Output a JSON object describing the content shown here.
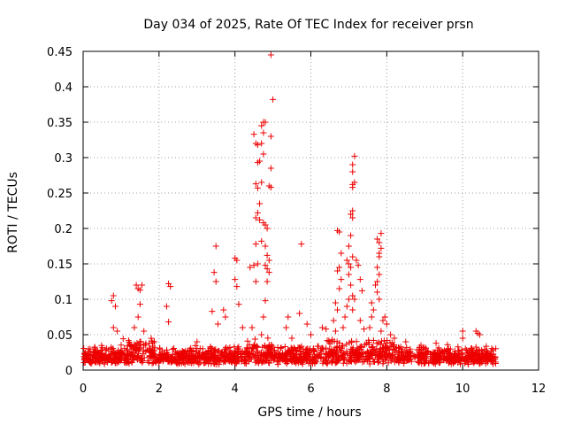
{
  "chart_data": {
    "type": "scatter",
    "title": "Day 034 of 2025, Rate Of TEC Index for receiver prsn",
    "xlabel": "GPS time / hours",
    "ylabel": "ROTI / TECUs",
    "xlim": [
      0,
      12
    ],
    "ylim": [
      0,
      0.45
    ],
    "xticks": [
      0,
      2,
      4,
      6,
      8,
      10,
      12
    ],
    "yticks": [
      0,
      0.05,
      0.1,
      0.15,
      0.2,
      0.25,
      0.3,
      0.35,
      0.4,
      0.45
    ],
    "xtick_labels": [
      "0",
      "2",
      "4",
      "6",
      "8",
      "10",
      "12"
    ],
    "ytick_labels": [
      "0",
      "0.05",
      "0.1",
      "0.15",
      "0.2",
      "0.25",
      "0.3",
      "0.35",
      "0.4",
      "0.45"
    ],
    "grid": true,
    "marker": "+",
    "series": [
      {
        "name": "ROTI",
        "color": "#ee0000",
        "baseline_range_hours": [
          0.0,
          10.9
        ],
        "baseline_typical_roti": [
          0.008,
          0.035
        ],
        "points": [
          [
            0.75,
            0.098
          ],
          [
            0.8,
            0.105
          ],
          [
            0.85,
            0.09
          ],
          [
            0.8,
            0.06
          ],
          [
            0.9,
            0.055
          ],
          [
            1.4,
            0.12
          ],
          [
            1.45,
            0.115
          ],
          [
            1.5,
            0.113
          ],
          [
            1.55,
            0.12
          ],
          [
            1.45,
            0.075
          ],
          [
            1.5,
            0.093
          ],
          [
            1.35,
            0.06
          ],
          [
            1.6,
            0.055
          ],
          [
            2.25,
            0.122
          ],
          [
            2.3,
            0.118
          ],
          [
            2.2,
            0.09
          ],
          [
            2.25,
            0.068
          ],
          [
            3.0,
            0.04
          ],
          [
            3.5,
            0.175
          ],
          [
            3.45,
            0.138
          ],
          [
            3.5,
            0.125
          ],
          [
            3.4,
            0.083
          ],
          [
            3.55,
            0.065
          ],
          [
            3.7,
            0.085
          ],
          [
            3.75,
            0.075
          ],
          [
            4.0,
            0.158
          ],
          [
            4.05,
            0.155
          ],
          [
            4.0,
            0.128
          ],
          [
            4.05,
            0.118
          ],
          [
            4.1,
            0.093
          ],
          [
            4.2,
            0.06
          ],
          [
            4.4,
            0.145
          ],
          [
            4.5,
            0.148
          ],
          [
            4.6,
            0.15
          ],
          [
            4.55,
            0.125
          ],
          [
            4.45,
            0.06
          ],
          [
            4.5,
            0.333
          ],
          [
            4.55,
            0.32
          ],
          [
            4.6,
            0.318
          ],
          [
            4.65,
            0.295
          ],
          [
            4.6,
            0.293
          ],
          [
            4.7,
            0.32
          ],
          [
            4.75,
            0.35
          ],
          [
            4.7,
            0.345
          ],
          [
            4.75,
            0.335
          ],
          [
            4.8,
            0.35
          ],
          [
            4.75,
            0.305
          ],
          [
            4.55,
            0.263
          ],
          [
            4.6,
            0.257
          ],
          [
            4.7,
            0.265
          ],
          [
            4.65,
            0.235
          ],
          [
            4.6,
            0.222
          ],
          [
            4.55,
            0.215
          ],
          [
            4.65,
            0.212
          ],
          [
            4.75,
            0.208
          ],
          [
            4.8,
            0.205
          ],
          [
            4.85,
            0.2
          ],
          [
            4.7,
            0.182
          ],
          [
            4.55,
            0.178
          ],
          [
            4.8,
            0.175
          ],
          [
            4.85,
            0.162
          ],
          [
            4.9,
            0.155
          ],
          [
            4.8,
            0.148
          ],
          [
            4.85,
            0.143
          ],
          [
            4.9,
            0.138
          ],
          [
            4.85,
            0.125
          ],
          [
            4.8,
            0.098
          ],
          [
            4.75,
            0.075
          ],
          [
            4.7,
            0.05
          ],
          [
            4.95,
            0.445
          ],
          [
            5.0,
            0.382
          ],
          [
            4.95,
            0.33
          ],
          [
            4.95,
            0.285
          ],
          [
            4.95,
            0.258
          ],
          [
            4.9,
            0.26
          ],
          [
            5.4,
            0.075
          ],
          [
            5.35,
            0.06
          ],
          [
            5.5,
            0.045
          ],
          [
            5.75,
            0.178
          ],
          [
            5.7,
            0.08
          ],
          [
            5.9,
            0.065
          ],
          [
            6.0,
            0.05
          ],
          [
            6.3,
            0.06
          ],
          [
            6.4,
            0.058
          ],
          [
            6.55,
            0.04
          ],
          [
            6.6,
            0.07
          ],
          [
            6.65,
            0.055
          ],
          [
            6.65,
            0.095
          ],
          [
            6.7,
            0.085
          ],
          [
            6.75,
            0.145
          ],
          [
            6.7,
            0.14
          ],
          [
            6.8,
            0.128
          ],
          [
            6.75,
            0.115
          ],
          [
            6.8,
            0.165
          ],
          [
            6.7,
            0.197
          ],
          [
            6.75,
            0.195
          ],
          [
            6.85,
            0.06
          ],
          [
            6.9,
            0.075
          ],
          [
            6.95,
            0.09
          ],
          [
            7.0,
            0.1
          ],
          [
            7.0,
            0.135
          ],
          [
            7.05,
            0.12
          ],
          [
            7.1,
            0.105
          ],
          [
            7.15,
            0.1
          ],
          [
            7.1,
            0.085
          ],
          [
            6.95,
            0.155
          ],
          [
            7.0,
            0.15
          ],
          [
            7.05,
            0.19
          ],
          [
            7.0,
            0.175
          ],
          [
            7.1,
            0.16
          ],
          [
            7.05,
            0.145
          ],
          [
            7.05,
            0.22
          ],
          [
            7.1,
            0.225
          ],
          [
            7.1,
            0.215
          ],
          [
            7.1,
            0.258
          ],
          [
            7.1,
            0.262
          ],
          [
            7.15,
            0.265
          ],
          [
            7.1,
            0.29
          ],
          [
            7.15,
            0.302
          ],
          [
            7.1,
            0.28
          ],
          [
            7.2,
            0.155
          ],
          [
            7.25,
            0.148
          ],
          [
            7.3,
            0.128
          ],
          [
            7.35,
            0.112
          ],
          [
            7.3,
            0.07
          ],
          [
            7.4,
            0.058
          ],
          [
            7.6,
            0.075
          ],
          [
            7.55,
            0.06
          ],
          [
            7.65,
            0.085
          ],
          [
            7.6,
            0.095
          ],
          [
            7.7,
            0.12
          ],
          [
            7.75,
            0.125
          ],
          [
            7.8,
            0.135
          ],
          [
            7.75,
            0.11
          ],
          [
            7.8,
            0.1
          ],
          [
            7.75,
            0.185
          ],
          [
            7.8,
            0.18
          ],
          [
            7.85,
            0.193
          ],
          [
            7.85,
            0.172
          ],
          [
            7.8,
            0.16
          ],
          [
            7.75,
            0.145
          ],
          [
            7.8,
            0.165
          ],
          [
            7.85,
            0.055
          ],
          [
            7.9,
            0.07
          ],
          [
            7.95,
            0.075
          ],
          [
            8.0,
            0.065
          ],
          [
            8.1,
            0.05
          ],
          [
            8.2,
            0.045
          ],
          [
            8.5,
            0.04
          ],
          [
            8.9,
            0.035
          ],
          [
            9.3,
            0.038
          ],
          [
            9.6,
            0.036
          ],
          [
            10.0,
            0.045
          ],
          [
            10.0,
            0.055
          ],
          [
            10.35,
            0.055
          ],
          [
            10.4,
            0.052
          ],
          [
            10.45,
            0.05
          ]
        ]
      }
    ]
  }
}
